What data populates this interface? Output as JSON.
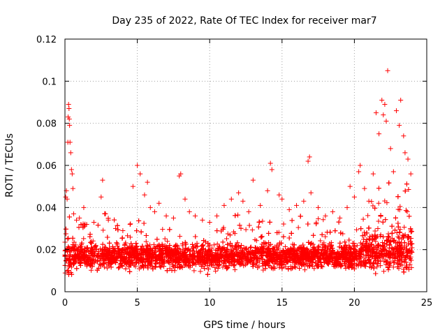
{
  "chart_data": {
    "type": "scatter",
    "title": "Day 235 of 2022, Rate Of TEC Index for receiver mar7",
    "xlabel": "GPS time / hours",
    "ylabel": "ROTI / TECUs",
    "xlim": [
      0,
      25
    ],
    "ylim": [
      0,
      0.12
    ],
    "x_ticks": [
      "0",
      "5",
      "10",
      "15",
      "20",
      "25"
    ],
    "y_ticks": [
      "0",
      "0.02",
      "0.04",
      "0.06",
      "0.08",
      "0.1",
      "0.12"
    ],
    "x_tick_values": [
      0,
      5,
      10,
      15,
      20,
      25
    ],
    "y_tick_values": [
      0,
      0.02,
      0.04,
      0.06,
      0.08,
      0.1,
      0.12
    ],
    "grid": true,
    "marker": "+",
    "marker_color": "#ff0000",
    "series": [
      {
        "points": [
          [
            0.05,
            0.045
          ],
          [
            0.1,
            0.048
          ],
          [
            0.15,
            0.044
          ],
          [
            0.2,
            0.071
          ],
          [
            0.22,
            0.083
          ],
          [
            0.25,
            0.089
          ],
          [
            0.28,
            0.087
          ],
          [
            0.3,
            0.082
          ],
          [
            0.32,
            0.079
          ],
          [
            0.35,
            0.071
          ],
          [
            0.4,
            0.066
          ],
          [
            0.45,
            0.058
          ],
          [
            0.5,
            0.056
          ],
          [
            0.55,
            0.049
          ],
          [
            0.6,
            0.037
          ],
          [
            0.8,
            0.034
          ],
          [
            1.0,
            0.035
          ],
          [
            1.3,
            0.04
          ],
          [
            1.5,
            0.032
          ],
          [
            2.0,
            0.033
          ],
          [
            2.5,
            0.045
          ],
          [
            2.6,
            0.053
          ],
          [
            2.8,
            0.037
          ],
          [
            3.0,
            0.034
          ],
          [
            3.5,
            0.03
          ],
          [
            4.0,
            0.029
          ],
          [
            4.5,
            0.032
          ],
          [
            4.7,
            0.05
          ],
          [
            5.0,
            0.06
          ],
          [
            5.2,
            0.056
          ],
          [
            5.5,
            0.046
          ],
          [
            5.7,
            0.052
          ],
          [
            5.9,
            0.04
          ],
          [
            6.2,
            0.038
          ],
          [
            6.5,
            0.042
          ],
          [
            7.0,
            0.036
          ],
          [
            7.5,
            0.035
          ],
          [
            7.9,
            0.055
          ],
          [
            8.0,
            0.056
          ],
          [
            8.3,
            0.044
          ],
          [
            8.6,
            0.038
          ],
          [
            9.0,
            0.036
          ],
          [
            9.5,
            0.034
          ],
          [
            10.0,
            0.033
          ],
          [
            10.5,
            0.036
          ],
          [
            11.0,
            0.041
          ],
          [
            11.5,
            0.044
          ],
          [
            12.0,
            0.047
          ],
          [
            12.3,
            0.043
          ],
          [
            12.7,
            0.038
          ],
          [
            13.0,
            0.053
          ],
          [
            13.5,
            0.041
          ],
          [
            14.0,
            0.048
          ],
          [
            14.2,
            0.061
          ],
          [
            14.3,
            0.058
          ],
          [
            14.8,
            0.046
          ],
          [
            15.0,
            0.044
          ],
          [
            15.5,
            0.039
          ],
          [
            16.0,
            0.041
          ],
          [
            16.5,
            0.043
          ],
          [
            16.8,
            0.062
          ],
          [
            16.9,
            0.064
          ],
          [
            17.0,
            0.047
          ],
          [
            17.5,
            0.04
          ],
          [
            18.0,
            0.036
          ],
          [
            18.5,
            0.038
          ],
          [
            19.0,
            0.035
          ],
          [
            19.5,
            0.04
          ],
          [
            19.7,
            0.05
          ],
          [
            20.0,
            0.045
          ],
          [
            20.3,
            0.057
          ],
          [
            20.4,
            0.06
          ],
          [
            20.7,
            0.049
          ],
          [
            21.0,
            0.043
          ],
          [
            21.3,
            0.056
          ],
          [
            21.5,
            0.085
          ],
          [
            21.7,
            0.075
          ],
          [
            21.9,
            0.091
          ],
          [
            22.0,
            0.084
          ],
          [
            22.1,
            0.089
          ],
          [
            22.2,
            0.081
          ],
          [
            22.3,
            0.105
          ],
          [
            22.5,
            0.068
          ],
          [
            22.7,
            0.057
          ],
          [
            22.9,
            0.086
          ],
          [
            23.1,
            0.079
          ],
          [
            23.2,
            0.091
          ],
          [
            23.4,
            0.074
          ],
          [
            23.5,
            0.066
          ],
          [
            23.7,
            0.063
          ],
          [
            23.9,
            0.056
          ]
        ]
      }
    ]
  }
}
